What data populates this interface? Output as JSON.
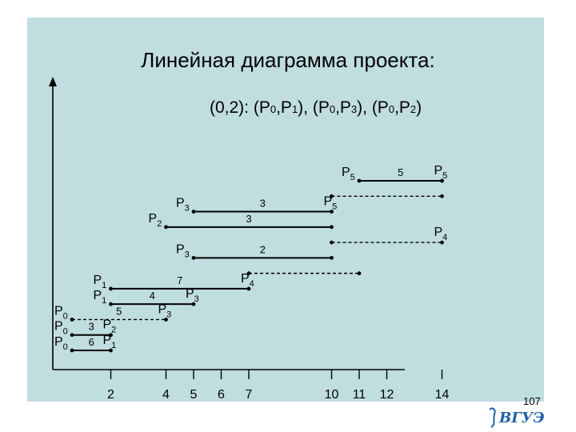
{
  "title": "Линейная диаграмма проекта:",
  "subtitle": {
    "prefix": "(0,2): (P",
    "pairs": [
      [
        "0",
        "1"
      ],
      [
        "0",
        "3"
      ],
      [
        "0",
        "2"
      ]
    ]
  },
  "page_number": "107",
  "logo_text": "ВГУЭС",
  "colors": {
    "slide_bg": "#c0dde0",
    "ink": "#000000",
    "logo": "#1f5fa8"
  },
  "x_ticks": [
    "2",
    "4",
    "5",
    "6",
    "7",
    "10",
    "11",
    "12",
    "14"
  ],
  "tick_values": [
    2,
    4,
    5,
    6,
    7,
    10,
    11,
    12,
    14
  ],
  "rows": [
    {
      "label": "P",
      "sub": "5",
      "start": 11,
      "end": 14,
      "style": "solid",
      "weight": "5",
      "end_label": "P",
      "end_sub": "5"
    },
    {
      "label": "",
      "sub": "",
      "start": 10,
      "end": 14,
      "style": "dashed",
      "weight": "",
      "end_label": "",
      "end_sub": ""
    },
    {
      "label": "P",
      "sub": "3",
      "start": 5,
      "end": 10,
      "style": "solid",
      "weight": "3",
      "end_label": "P",
      "end_sub": "5"
    },
    {
      "label": "P",
      "sub": "2",
      "start": 4,
      "end": 10,
      "style": "solid",
      "weight": "3",
      "end_label": "",
      "end_sub": ""
    },
    {
      "label": "",
      "sub": "",
      "start": 10,
      "end": 14,
      "style": "dashed",
      "weight": "",
      "end_label": "P",
      "end_sub": "4"
    },
    {
      "label": "P",
      "sub": "3",
      "start": 5,
      "end": 10,
      "style": "solid",
      "weight": "2",
      "end_label": "",
      "end_sub": ""
    },
    {
      "label": "",
      "sub": "",
      "start": 7,
      "end": 11,
      "style": "dashed",
      "weight": "",
      "end_label": "",
      "end_sub": ""
    },
    {
      "label": "P",
      "sub": "1",
      "start": 2,
      "end": 7,
      "style": "solid",
      "weight": "7",
      "end_label": "P",
      "end_sub": "4"
    },
    {
      "label": "P",
      "sub": "1",
      "start": 2,
      "end": 5,
      "style": "solid",
      "weight": "4",
      "end_label": "P",
      "end_sub": "3"
    },
    {
      "label": "P",
      "sub": "0",
      "start": 0,
      "end": 4,
      "style": "dashed",
      "weight": "5",
      "end_label": "P",
      "end_sub": "3"
    },
    {
      "label": "P",
      "sub": "0",
      "start": 0,
      "end": 2,
      "style": "solid",
      "weight": "3",
      "end_label": "P",
      "end_sub": "2"
    },
    {
      "label": "P",
      "sub": "0",
      "start": 0,
      "end": 2,
      "style": "solid",
      "weight": "6",
      "end_label": "P",
      "end_sub": "1"
    }
  ]
}
